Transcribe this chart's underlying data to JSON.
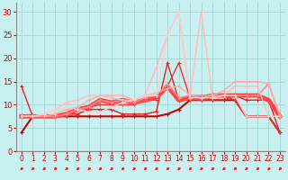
{
  "background_color": "#c8f0f0",
  "grid_color": "#a8dada",
  "xlim": [
    -0.5,
    23.5
  ],
  "ylim": [
    0,
    32
  ],
  "xticks": [
    0,
    1,
    2,
    3,
    4,
    5,
    6,
    7,
    8,
    9,
    10,
    11,
    12,
    13,
    14,
    15,
    16,
    17,
    18,
    19,
    20,
    21,
    22,
    23
  ],
  "yticks": [
    0,
    5,
    10,
    15,
    20,
    25,
    30
  ],
  "lines": [
    {
      "x": [
        0,
        1,
        2,
        3,
        4,
        5,
        6,
        7,
        8,
        9,
        10,
        11,
        12,
        13,
        14,
        15,
        16,
        17,
        18,
        19,
        20,
        21,
        22,
        23
      ],
      "y": [
        4,
        7.5,
        7.5,
        7.5,
        7.5,
        7.5,
        7.5,
        7.5,
        7.5,
        7.5,
        7.5,
        7.5,
        7.5,
        8,
        9,
        11,
        11,
        11,
        11,
        11,
        7.5,
        7.5,
        7.5,
        4
      ],
      "color": "#cc0000",
      "lw": 1.5,
      "ms": 3
    },
    {
      "x": [
        0,
        1,
        2,
        3,
        4,
        5,
        6,
        7,
        8,
        9,
        10,
        11,
        12,
        13,
        14,
        15,
        16,
        17,
        18,
        19,
        20,
        21,
        22,
        23
      ],
      "y": [
        14,
        7.5,
        7.5,
        7.5,
        8,
        8,
        9,
        9,
        9,
        8,
        8,
        8,
        8.5,
        19,
        11,
        11,
        11,
        11,
        11,
        12,
        11,
        11,
        11,
        4
      ],
      "color": "#dd2222",
      "lw": 1.0,
      "ms": 3
    },
    {
      "x": [
        0,
        1,
        2,
        3,
        4,
        5,
        6,
        7,
        8,
        9,
        10,
        11,
        12,
        13,
        14,
        15,
        16,
        17,
        18,
        19,
        20,
        21,
        22,
        23
      ],
      "y": [
        7.5,
        7.5,
        7.5,
        7.5,
        8,
        9,
        9.5,
        10,
        10,
        10,
        10,
        11,
        11,
        14,
        19,
        11.5,
        11,
        11.5,
        12,
        11,
        7.5,
        7.5,
        7.5,
        4
      ],
      "color": "#ee3333",
      "lw": 1.0,
      "ms": 3
    },
    {
      "x": [
        0,
        1,
        2,
        3,
        4,
        5,
        6,
        7,
        8,
        9,
        10,
        11,
        12,
        13,
        14,
        15,
        16,
        17,
        18,
        19,
        20,
        21,
        22,
        23
      ],
      "y": [
        7.5,
        7.5,
        7.5,
        7.5,
        8,
        9,
        9.5,
        11,
        10.5,
        11,
        10.5,
        11,
        11.5,
        14,
        11,
        11.5,
        11.5,
        12,
        12,
        12,
        12,
        12,
        11,
        7.5
      ],
      "color": "#ff4444",
      "lw": 3.5,
      "ms": 4
    },
    {
      "x": [
        0,
        1,
        2,
        3,
        4,
        5,
        6,
        7,
        8,
        9,
        10,
        11,
        12,
        13,
        14,
        15,
        16,
        17,
        18,
        19,
        20,
        21,
        22,
        23
      ],
      "y": [
        7.5,
        7.5,
        7.5,
        7.5,
        8,
        9,
        9.5,
        11,
        10.5,
        11,
        10.5,
        11.5,
        12,
        14.5,
        11.5,
        12,
        12,
        12,
        12,
        12,
        12,
        12,
        14.5,
        7.5
      ],
      "color": "#ff8888",
      "lw": 1.2,
      "ms": 3
    },
    {
      "x": [
        0,
        1,
        2,
        3,
        4,
        5,
        6,
        7,
        8,
        9,
        10,
        11,
        12,
        13,
        14,
        15,
        16,
        17,
        18,
        19,
        20,
        21,
        22,
        23
      ],
      "y": [
        7.5,
        7.5,
        7.5,
        8,
        9,
        9.5,
        11,
        12,
        12,
        12,
        11,
        12,
        12.5,
        13.5,
        14,
        12,
        11.5,
        12,
        13,
        15,
        15,
        15,
        14.5,
        7.5
      ],
      "color": "#ffaaaa",
      "lw": 1.0,
      "ms": 3
    },
    {
      "x": [
        0,
        1,
        2,
        3,
        4,
        5,
        6,
        7,
        8,
        9,
        10,
        11,
        12,
        13,
        14,
        15,
        16,
        17,
        18,
        19,
        20,
        21,
        22,
        23
      ],
      "y": [
        7.5,
        7.5,
        8,
        9,
        10.5,
        11,
        12,
        12,
        11.5,
        11,
        11,
        12,
        18,
        25,
        30,
        11.5,
        30,
        11.5,
        12,
        14,
        14,
        14,
        7.5,
        7.5
      ],
      "color": "#ffbbbb",
      "lw": 1.0,
      "ms": 3
    },
    {
      "x": [
        0,
        1,
        2,
        3,
        4,
        5,
        6,
        7,
        8,
        9,
        10,
        11,
        12,
        13,
        14,
        15,
        16,
        17,
        18,
        19,
        20,
        21,
        22,
        23
      ],
      "y": [
        7.5,
        7.5,
        8,
        9,
        9.5,
        9,
        8.5,
        8.5,
        9.5,
        10.5,
        11,
        12,
        12,
        25,
        30,
        11.5,
        11.5,
        11.5,
        12,
        12,
        7.5,
        7.5,
        7.5,
        7.5
      ],
      "color": "#ffcccc",
      "lw": 1.0,
      "ms": 3
    }
  ],
  "arrow_color": "#dd2222",
  "xlabel_color": "#cc0000",
  "tick_color": "#cc0000",
  "axis_color": "#888888",
  "tick_fontsize": 5.5,
  "xlabel_fontsize": 6.5
}
